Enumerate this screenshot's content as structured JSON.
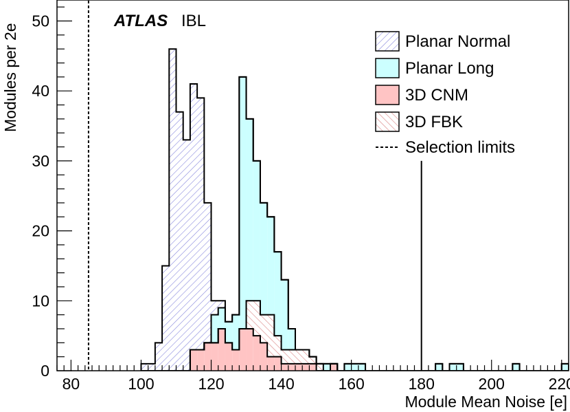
{
  "chart_data": {
    "type": "bar",
    "subtype": "stacked-histogram",
    "experiment": "ATLAS",
    "experiment_suffix": "IBL",
    "xlabel": "Module Mean Noise [e]",
    "ylabel": "Modules per 2e",
    "xlim": [
      76,
      222
    ],
    "ylim": [
      0,
      53
    ],
    "bin_width": 2,
    "x_ticks": [
      80,
      100,
      120,
      140,
      160,
      180,
      200,
      220
    ],
    "y_ticks": [
      0,
      10,
      20,
      30,
      40,
      50
    ],
    "grid": false,
    "legend_position": "top-right",
    "colors": {
      "planar_normal": "#8888dd",
      "planar_long": "#ccffff",
      "3d_cnm": "#ffc4c4",
      "3d_fbk": "#e8a0a0"
    },
    "bin_edges_start": 100,
    "series": [
      {
        "name": "3D CNM",
        "key": "3d_cnm",
        "fill": "solid",
        "values": [
          0,
          0,
          0,
          0,
          0,
          0,
          0,
          3,
          3,
          4,
          4,
          6,
          4,
          3,
          6,
          6,
          5,
          4,
          2,
          2,
          1,
          1,
          1,
          1,
          1,
          0,
          0,
          1,
          0,
          0,
          0,
          0,
          0,
          0,
          0,
          0,
          0,
          0,
          0,
          0,
          0,
          0,
          0,
          0,
          0,
          0,
          0,
          0,
          0,
          0,
          0,
          0,
          0,
          0,
          0,
          0,
          0,
          0,
          0,
          0,
          0
        ]
      },
      {
        "name": "3D FBK",
        "key": "3d_fbk",
        "fill": "hatch",
        "values": [
          0,
          0,
          0,
          0,
          0,
          0,
          0,
          0,
          0,
          0,
          0,
          0,
          0,
          0,
          0,
          4,
          5,
          4,
          6,
          3,
          2,
          2,
          2,
          2,
          1,
          1,
          0,
          0,
          0,
          0,
          0,
          0,
          0,
          0,
          0,
          0,
          0,
          0,
          0,
          0,
          0,
          0,
          0,
          0,
          0,
          0,
          0,
          0,
          0,
          0,
          0,
          0,
          0,
          0,
          0,
          0,
          0,
          0,
          0,
          0,
          0
        ]
      },
      {
        "name": "Planar Long",
        "key": "planar_long",
        "fill": "solid",
        "values": [
          0,
          0,
          0,
          0,
          0,
          0,
          0,
          0,
          0,
          0,
          4,
          3,
          3,
          5,
          36,
          26,
          20,
          16,
          14,
          12,
          10,
          3,
          0,
          0,
          0,
          0,
          1,
          0,
          0,
          1,
          1,
          1,
          0,
          0,
          0,
          0,
          0,
          0,
          0,
          0,
          0,
          0,
          1,
          0,
          1,
          1,
          0,
          0,
          0,
          0,
          0,
          0,
          0,
          1,
          0,
          0,
          0,
          0,
          0,
          0,
          1
        ]
      },
      {
        "name": "Planar Normal",
        "key": "planar_normal",
        "fill": "hatch",
        "values": [
          1,
          1,
          4,
          15,
          46,
          37,
          33,
          38,
          36,
          20,
          2,
          1,
          0,
          0,
          0,
          0,
          0,
          0,
          0,
          0,
          0,
          0,
          0,
          0,
          0,
          0,
          0,
          0,
          0,
          0,
          0,
          0,
          0,
          0,
          0,
          0,
          0,
          0,
          0,
          0,
          0,
          0,
          0,
          0,
          0,
          0,
          0,
          0,
          0,
          0,
          0,
          0,
          0,
          0,
          0,
          0,
          0,
          0,
          0,
          0,
          0
        ]
      }
    ],
    "selection_limits": {
      "label": "Selection limits",
      "values": [
        85,
        180
      ]
    },
    "legend": [
      "Planar Normal",
      "Planar Long",
      "3D CNM",
      "3D FBK",
      "Selection limits"
    ]
  }
}
